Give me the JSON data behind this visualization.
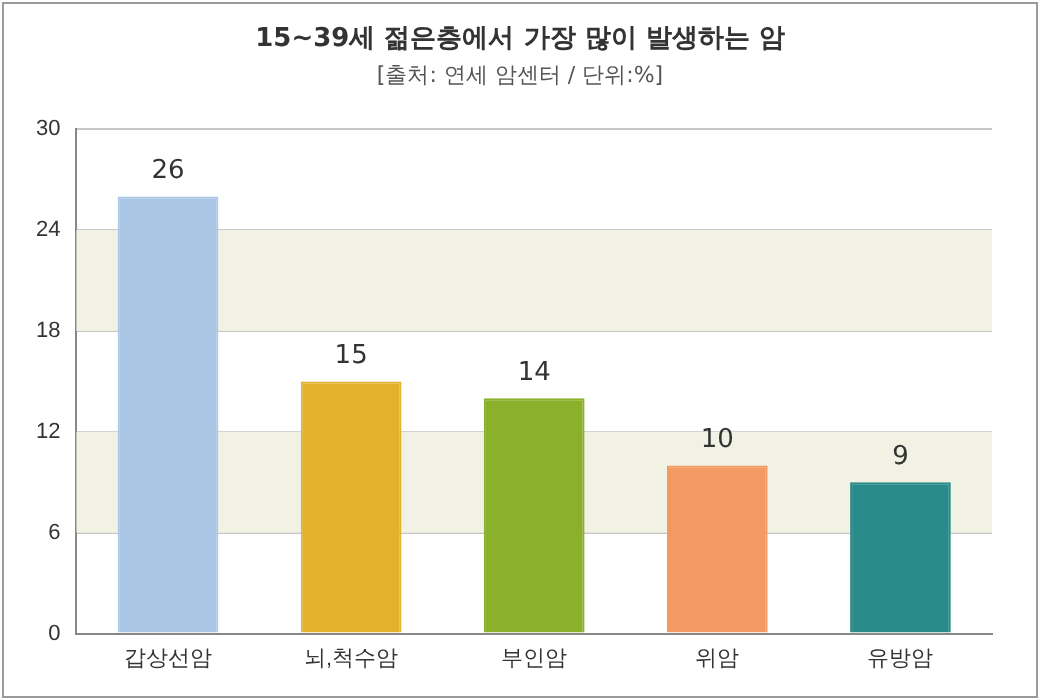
{
  "chart_data": {
    "type": "bar",
    "title": "15~39세 젊은층에서 가장 많이 발생하는 암",
    "subtitle": "[출처: 연세 암센터 / 단위:%]",
    "categories": [
      "갑상선암",
      "뇌,척수암",
      "부인암",
      "위암",
      "유방암"
    ],
    "values": [
      26,
      15,
      14,
      10,
      9
    ],
    "colors": [
      "#a9c6e4",
      "#e2b22e",
      "#8bb02c",
      "#f29a62",
      "#2a8c8a"
    ],
    "ylim": [
      0,
      30
    ],
    "yticks": [
      0,
      6,
      12,
      18,
      24,
      30
    ],
    "grid": "y",
    "data_labels": true,
    "bands": [
      {
        "axis": "y",
        "from": 6,
        "to": 12,
        "color": "#f1f1e4"
      },
      {
        "axis": "y",
        "from": 18,
        "to": 24,
        "color": "#f1f1e4"
      }
    ]
  }
}
